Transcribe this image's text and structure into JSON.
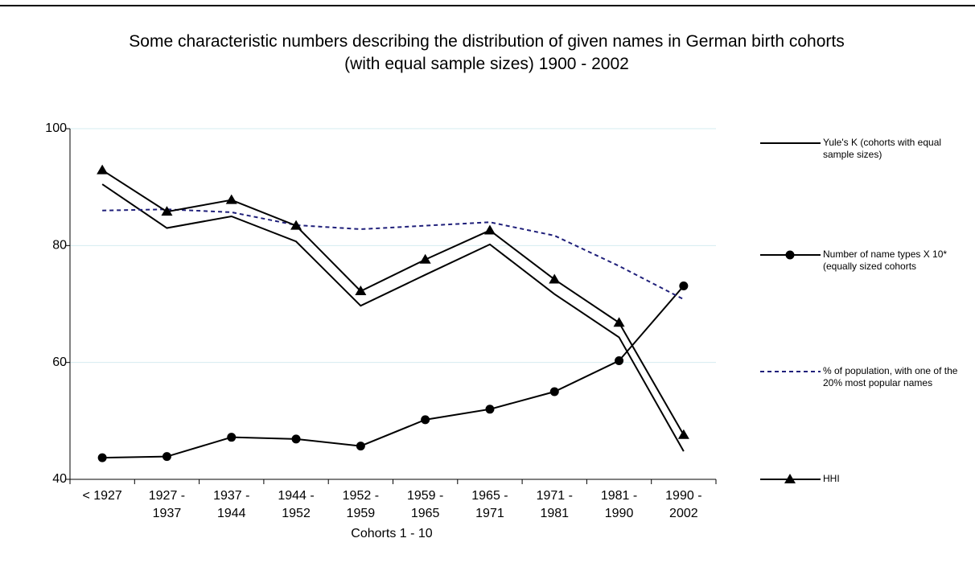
{
  "chart_data": {
    "type": "line",
    "title": "Some characteristic numbers describing the distribution of given names in German birth cohorts (with equal sample sizes) 1900 - 2002",
    "x_label": "Cohorts 1 - 10",
    "categories": [
      "< 1927",
      "1927 - 1937",
      "1937 - 1944",
      "1944 - 1952",
      "1952 - 1959",
      "1959 - 1965",
      "1965 - 1971",
      "1971 - 1981",
      "1981 - 1990",
      "1990 - 2002"
    ],
    "series": [
      {
        "name": "Yule's K (cohorts with equal sample sizes)",
        "color": "#000000",
        "marker": "none",
        "dash": false,
        "values": [
          90.5,
          83,
          85,
          80.7,
          69.7,
          75,
          80.2,
          71.7,
          64.3,
          44.8
        ]
      },
      {
        "name": "Number of name types X 10* (equally sized cohorts",
        "color": "#000000",
        "marker": "circle",
        "dash": false,
        "values": [
          43.7,
          43.9,
          47.2,
          46.9,
          45.7,
          50.2,
          52,
          55,
          60.3,
          73.1
        ]
      },
      {
        "name": "% of population, with one of the 20% most popular names",
        "color": "#1f1f7a",
        "marker": "none",
        "dash": true,
        "values": [
          86,
          86.2,
          85.7,
          83.5,
          82.8,
          83.4,
          84,
          81.7,
          76.5,
          70.8
        ]
      },
      {
        "name": "HHI",
        "color": "#000000",
        "marker": "triangle",
        "dash": false,
        "values": [
          92.9,
          85.8,
          87.8,
          83.4,
          72.2,
          77.6,
          82.6,
          74.2,
          66.8,
          47.6
        ]
      }
    ],
    "ylim": [
      40,
      100
    ],
    "yticks": [
      40,
      60,
      80,
      100
    ],
    "grid": true,
    "legend": "right"
  }
}
